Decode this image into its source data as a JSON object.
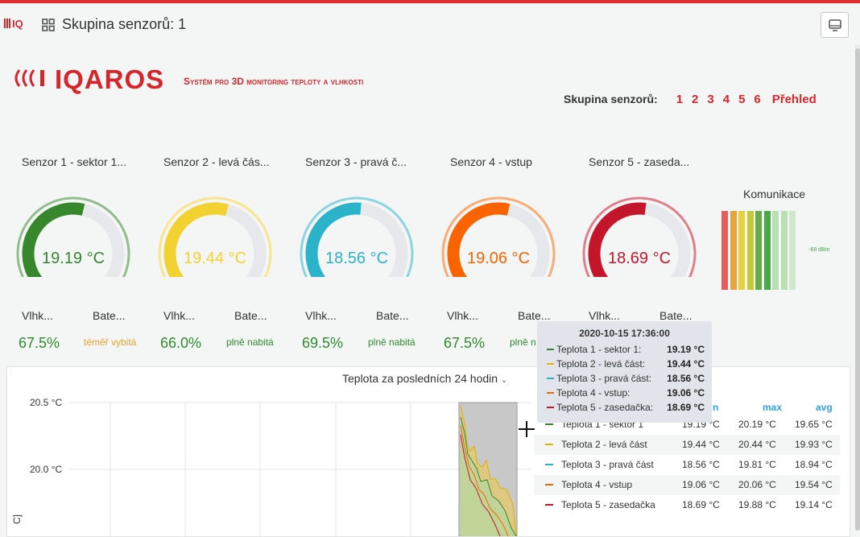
{
  "header": {
    "title": "Skupina senzorů: 1"
  },
  "brand": {
    "name": "IQAROS",
    "tagline": "Systém pro 3D monitoring teploty a vlhkosti"
  },
  "group_nav": {
    "label": "Skupina senzorů:",
    "links": [
      "1",
      "2",
      "3",
      "4",
      "5",
      "6",
      "Přehled"
    ]
  },
  "sensors": [
    {
      "title": "Senzor 1 - sektor 1...",
      "temp": "19.19 °C",
      "color": "#37872d",
      "fill": 0.55,
      "hum_label": "Vlhk...",
      "bat_label": "Bate...",
      "hum": "67.5%",
      "bat": "téměř vybitá",
      "bat_color": "#e0a52a"
    },
    {
      "title": "Senzor 2 - levá čás...",
      "temp": "19.44 °C",
      "color": "#f2d231",
      "fill": 0.56,
      "hum_label": "Vlhk...",
      "bat_label": "Bate...",
      "hum": "66.0%",
      "bat": "plně nabitá",
      "bat_color": "#2e8b2e"
    },
    {
      "title": "Senzor 3 - pravá č...",
      "temp": "18.56 °C",
      "color": "#2bb3c9",
      "fill": 0.52,
      "hum_label": "Vlhk...",
      "bat_label": "Bate...",
      "hum": "69.5%",
      "bat": "plně nabitá",
      "bat_color": "#2e8b2e"
    },
    {
      "title": "Senzor 4 - vstup",
      "temp": "19.06 °C",
      "color": "#fa6400",
      "fill": 0.55,
      "hum_label": "Vlhk...",
      "bat_label": "Bate...",
      "hum": "67.5%",
      "bat": "plně n",
      "bat_color": "#2e8b2e"
    },
    {
      "title": "Senzor 5 - zaseda...",
      "temp": "18.69 °C",
      "color": "#c4162a",
      "fill": 0.53,
      "hum_label": "Vlhk...",
      "bat_label": "Bate...",
      "hum": "",
      "bat": "",
      "bat_color": "#2e8b2e"
    }
  ],
  "communication": {
    "title": "Komunikace",
    "value": "-68 dBm",
    "bar_colors": [
      "#e06060",
      "#e8a33c",
      "#e8d23c",
      "#c4c93c",
      "#6aa84f",
      "#4aa84a",
      "#b9dfb2",
      "#b9dfb2",
      "#cfe8c9"
    ]
  },
  "panel": {
    "title": "Teplota za posledních 24 hodin",
    "y_ticks": [
      "20.5 °C",
      "20.0 °C"
    ],
    "y_axis_fragment": "C]",
    "legend_headers": [
      "n",
      "max",
      "avg"
    ],
    "legend_rows": [
      {
        "name": "Teplota 1 - sektor 1",
        "min": "19.19 °C",
        "max": "20.19 °C",
        "avg": "19.65 °C",
        "color": "#37872d"
      },
      {
        "name": "Teplota 2 - levá část",
        "min": "19.44 °C",
        "max": "20.44 °C",
        "avg": "19.93 °C",
        "color": "#e0b400"
      },
      {
        "name": "Teplota 3 - pravá část",
        "min": "18.56 °C",
        "max": "19.81 °C",
        "avg": "18.94 °C",
        "color": "#2bb3c9"
      },
      {
        "name": "Teplota 4 - vstup",
        "min": "19.06 °C",
        "max": "20.06 °C",
        "avg": "19.54 °C",
        "color": "#fa6400"
      },
      {
        "name": "Teplota 5 - zasedačka",
        "min": "18.69 °C",
        "max": "19.88 °C",
        "avg": "19.14 °C",
        "color": "#c4162a"
      }
    ]
  },
  "tooltip": {
    "time": "2020-10-15 17:36:00",
    "rows": [
      {
        "name": "Teplota 1 - sektor 1:",
        "value": "19.19 °C",
        "color": "#37872d"
      },
      {
        "name": "Teplota 2 - levá část:",
        "value": "19.44 °C",
        "color": "#e0b400"
      },
      {
        "name": "Teplota 3 - pravá část:",
        "value": "18.56 °C",
        "color": "#2bb3c9"
      },
      {
        "name": "Teplota 4 - vstup:",
        "value": "19.06 °C",
        "color": "#fa6400"
      },
      {
        "name": "Teplota 5 - zasedačka:",
        "value": "18.69 °C",
        "color": "#c4162a"
      }
    ]
  }
}
